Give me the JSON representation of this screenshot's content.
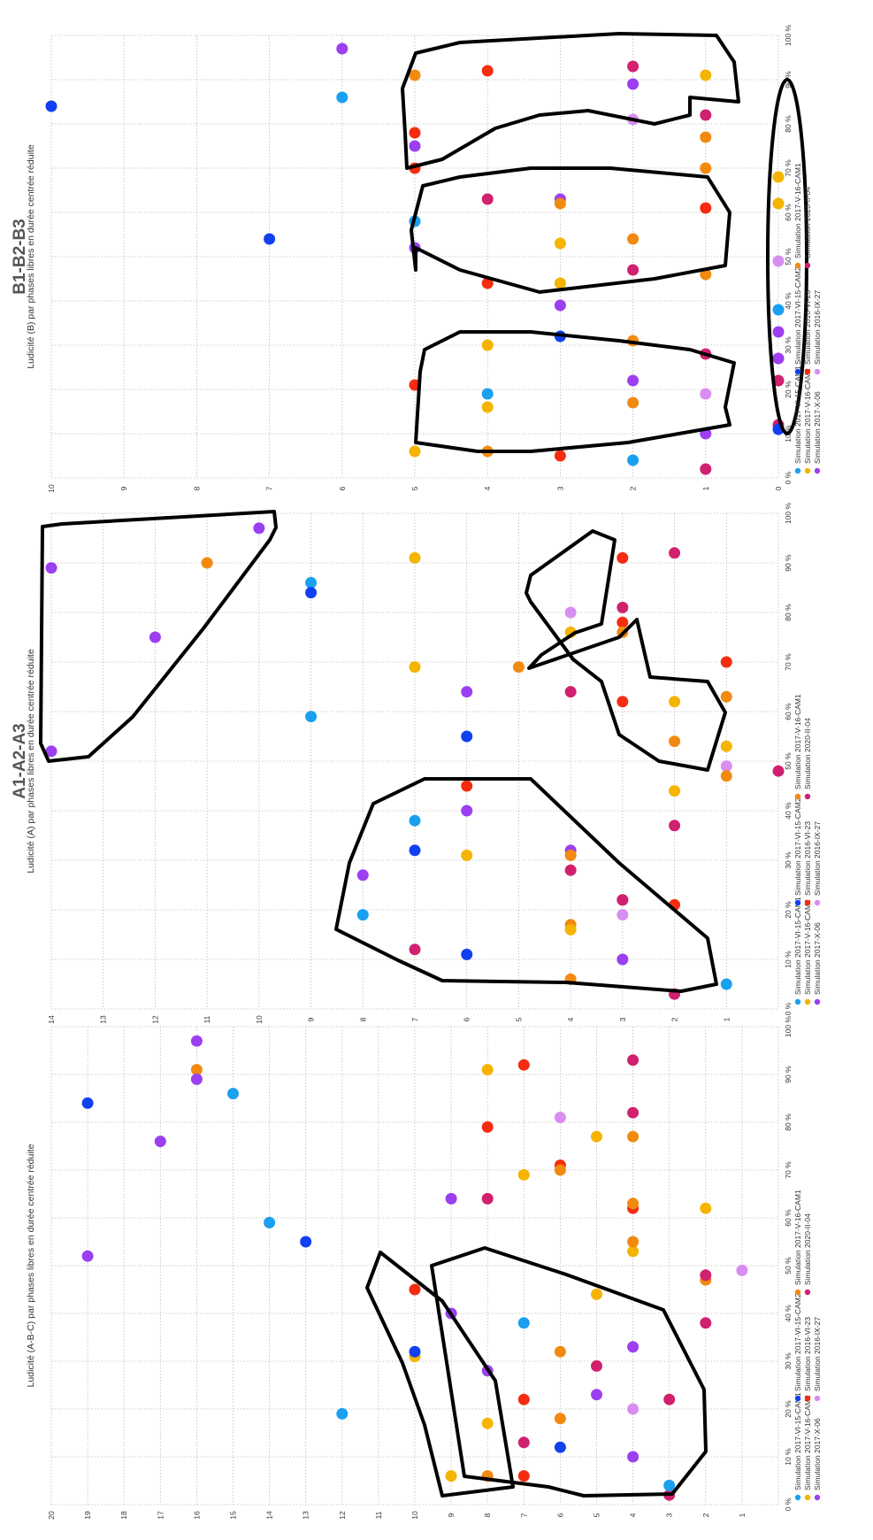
{
  "colors": {
    "Simulation 2017-VI-15-CAM1": "#1aa0f0",
    "Simulation 2017-V-16-CAM2": "#f5b400",
    "Simulation 2017-X-06": "#9b3ff0",
    "Simulation 2017-VI-15-CAM2": "#1040f0",
    "Simulation 2016-VI-23": "#f42d10",
    "Simulation 2016-IX-27": "#d88ef0",
    "Simulation 2017-V-16-CAM1": "#f28a10",
    "Simulation 2020-II-04": "#d0206e"
  },
  "legend_entries": [
    "Simulation 2017-VI-15-CAM1",
    "Simulation 2017-V-16-CAM2",
    "Simulation 2017-X-06",
    "Simulation 2017-VI-15-CAM2",
    "Simulation 2016-VI-23",
    "Simulation 2016-IX-27",
    "Simulation 2017-V-16-CAM1",
    "Simulation 2020-II-04"
  ],
  "chart_data": [
    {
      "type": "scatter",
      "title": "",
      "subtitle": "Ludicité (A-B-C) par phases libres en durée centrée réduite",
      "xlabel": "",
      "ylabel": "",
      "xlim": [
        0,
        100
      ],
      "ylim": [
        0,
        20
      ],
      "x_ticks": [
        "0 %",
        "10 %",
        "20 %",
        "30 %",
        "40 %",
        "50 %",
        "60 %",
        "70 %",
        "80 %",
        "90 %",
        "100 %"
      ],
      "y_ticks": [
        "20",
        "19",
        "18",
        "17",
        "16",
        "15",
        "14",
        "13",
        "12",
        "11",
        "10",
        "9",
        "8",
        "7",
        "6",
        "5",
        "4",
        "3",
        "2",
        "1"
      ],
      "points": [
        {
          "s": "Simulation 2017-X-06",
          "x": 52,
          "y": 19
        },
        {
          "s": "Simulation 2017-VI-15-CAM2",
          "x": 84,
          "y": 19
        },
        {
          "s": "Simulation 2017-X-06",
          "x": 76,
          "y": 17
        },
        {
          "s": "Simulation 2017-X-06",
          "x": 97,
          "y": 16
        },
        {
          "s": "Simulation 2017-V-16-CAM1",
          "x": 91,
          "y": 16
        },
        {
          "s": "Simulation 2017-X-06",
          "x": 89,
          "y": 16
        },
        {
          "s": "Simulation 2017-VI-15-CAM1",
          "x": 86,
          "y": 15
        },
        {
          "s": "Simulation 2017-VI-15-CAM1",
          "x": 59,
          "y": 14
        },
        {
          "s": "Simulation 2017-VI-15-CAM2",
          "x": 55,
          "y": 13
        },
        {
          "s": "Simulation 2017-VI-15-CAM1",
          "x": 19,
          "y": 12
        },
        {
          "s": "Simulation 2016-VI-23",
          "x": 45,
          "y": 10
        },
        {
          "s": "Simulation 2017-V-16-CAM2",
          "x": 31,
          "y": 10
        },
        {
          "s": "Simulation 2017-VI-15-CAM2",
          "x": 32,
          "y": 10
        },
        {
          "s": "Simulation 2017-V-16-CAM2",
          "x": 6,
          "y": 9
        },
        {
          "s": "Simulation 2017-X-06",
          "x": 40,
          "y": 9
        },
        {
          "s": "Simulation 2017-X-06",
          "x": 64,
          "y": 9
        },
        {
          "s": "Simulation 2017-V-16-CAM1",
          "x": 6,
          "y": 8
        },
        {
          "s": "Simulation 2017-V-16-CAM2",
          "x": 17,
          "y": 8
        },
        {
          "s": "Simulation 2017-X-06",
          "x": 28,
          "y": 8
        },
        {
          "s": "Simulation 2020-II-04",
          "x": 64,
          "y": 8
        },
        {
          "s": "Simulation 2016-VI-23",
          "x": 79,
          "y": 8
        },
        {
          "s": "Simulation 2017-V-16-CAM2",
          "x": 91,
          "y": 8
        },
        {
          "s": "Simulation 2016-VI-23",
          "x": 6,
          "y": 7
        },
        {
          "s": "Simulation 2020-II-04",
          "x": 13,
          "y": 7
        },
        {
          "s": "Simulation 2016-VI-23",
          "x": 22,
          "y": 7
        },
        {
          "s": "Simulation 2017-VI-15-CAM1",
          "x": 38,
          "y": 7
        },
        {
          "s": "Simulation 2017-V-16-CAM2",
          "x": 69,
          "y": 7
        },
        {
          "s": "Simulation 2016-VI-23",
          "x": 92,
          "y": 7
        },
        {
          "s": "Simulation 2017-VI-15-CAM2",
          "x": 12,
          "y": 6
        },
        {
          "s": "Simulation 2017-V-16-CAM1",
          "x": 18,
          "y": 6
        },
        {
          "s": "Simulation 2017-V-16-CAM1",
          "x": 32,
          "y": 6
        },
        {
          "s": "Simulation 2016-VI-23",
          "x": 71,
          "y": 6
        },
        {
          "s": "Simulation 2017-V-16-CAM1",
          "x": 70,
          "y": 6
        },
        {
          "s": "Simulation 2016-IX-27",
          "x": 81,
          "y": 6
        },
        {
          "s": "Simulation 2017-X-06",
          "x": 23,
          "y": 5
        },
        {
          "s": "Simulation 2020-II-04",
          "x": 29,
          "y": 5
        },
        {
          "s": "Simulation 2017-V-16-CAM2",
          "x": 44,
          "y": 5
        },
        {
          "s": "Simulation 2017-V-16-CAM2",
          "x": 77,
          "y": 5
        },
        {
          "s": "Simulation 2017-X-06",
          "x": 10,
          "y": 4
        },
        {
          "s": "Simulation 2016-IX-27",
          "x": 20,
          "y": 4
        },
        {
          "s": "Simulation 2017-X-06",
          "x": 33,
          "y": 4
        },
        {
          "s": "Simulation 2017-V-16-CAM2",
          "x": 53,
          "y": 4
        },
        {
          "s": "Simulation 2017-V-16-CAM1",
          "x": 55,
          "y": 4
        },
        {
          "s": "Simulation 2016-VI-23",
          "x": 62,
          "y": 4
        },
        {
          "s": "Simulation 2017-V-16-CAM1",
          "x": 63,
          "y": 4
        },
        {
          "s": "Simulation 2017-V-16-CAM1",
          "x": 77,
          "y": 4
        },
        {
          "s": "Simulation 2020-II-04",
          "x": 82,
          "y": 4
        },
        {
          "s": "Simulation 2020-II-04",
          "x": 93,
          "y": 4
        },
        {
          "s": "Simulation 2020-II-04",
          "x": 2,
          "y": 3
        },
        {
          "s": "Simulation 2017-VI-15-CAM1",
          "x": 4,
          "y": 3
        },
        {
          "s": "Simulation 2020-II-04",
          "x": 22,
          "y": 3
        },
        {
          "s": "Simulation 2020-II-04",
          "x": 38,
          "y": 2
        },
        {
          "s": "Simulation 2017-V-16-CAM1",
          "x": 47,
          "y": 2
        },
        {
          "s": "Simulation 2020-II-04",
          "x": 48,
          "y": 2
        },
        {
          "s": "Simulation 2017-V-16-CAM2",
          "x": 62,
          "y": 2
        },
        {
          "s": "Simulation 2016-IX-27",
          "x": 49,
          "y": 1
        }
      ]
    },
    {
      "type": "scatter",
      "title": "A1-A2-A3",
      "subtitle": "Ludicité (A) par phases libres en durée centrée réduite",
      "xlabel": "",
      "ylabel": "",
      "xlim": [
        0,
        100
      ],
      "ylim": [
        0,
        14
      ],
      "x_ticks": [
        "0 %",
        "10 %",
        "20 %",
        "30 %",
        "40 %",
        "50 %",
        "60 %",
        "70 %",
        "80 %",
        "90 %",
        "100 %"
      ],
      "y_ticks": [
        "14",
        "13",
        "12",
        "11",
        "10",
        "9",
        "8",
        "7",
        "6",
        "5",
        "4",
        "3",
        "2",
        "1"
      ],
      "points": [
        {
          "s": "Simulation 2017-X-06",
          "x": 89,
          "y": 14
        },
        {
          "s": "Simulation 2017-X-06",
          "x": 52,
          "y": 14
        },
        {
          "s": "Simulation 2017-X-06",
          "x": 75,
          "y": 12
        },
        {
          "s": "Simulation 2017-V-16-CAM1",
          "x": 90,
          "y": 11
        },
        {
          "s": "Simulation 2017-X-06",
          "x": 97,
          "y": 10
        },
        {
          "s": "Simulation 2017-VI-15-CAM1",
          "x": 86,
          "y": 9
        },
        {
          "s": "Simulation 2017-VI-15-CAM2",
          "x": 84,
          "y": 9
        },
        {
          "s": "Simulation 2017-VI-15-CAM1",
          "x": 59,
          "y": 9
        },
        {
          "s": "Simulation 2017-VI-15-CAM1",
          "x": 19,
          "y": 8
        },
        {
          "s": "Simulation 2017-X-06",
          "x": 27,
          "y": 8
        },
        {
          "s": "Simulation 2017-V-16-CAM2",
          "x": 91,
          "y": 7
        },
        {
          "s": "Simulation 2017-V-16-CAM2",
          "x": 69,
          "y": 7
        },
        {
          "s": "Simulation 2017-VI-15-CAM1",
          "x": 38,
          "y": 7
        },
        {
          "s": "Simulation 2017-VI-15-CAM2",
          "x": 32,
          "y": 7
        },
        {
          "s": "Simulation 2020-II-04",
          "x": 12,
          "y": 7
        },
        {
          "s": "Simulation 2017-X-06",
          "x": 64,
          "y": 6
        },
        {
          "s": "Simulation 2017-VI-15-CAM2",
          "x": 55,
          "y": 6
        },
        {
          "s": "Simulation 2016-VI-23",
          "x": 45,
          "y": 6
        },
        {
          "s": "Simulation 2017-X-06",
          "x": 40,
          "y": 6
        },
        {
          "s": "Simulation 2017-V-16-CAM2",
          "x": 31,
          "y": 6
        },
        {
          "s": "Simulation 2017-VI-15-CAM2",
          "x": 11,
          "y": 6
        },
        {
          "s": "Simulation 2017-V-16-CAM1",
          "x": 69,
          "y": 5
        },
        {
          "s": "Simulation 2016-IX-27",
          "x": 80,
          "y": 4
        },
        {
          "s": "Simulation 2017-V-16-CAM2",
          "x": 76,
          "y": 4
        },
        {
          "s": "Simulation 2020-II-04",
          "x": 64,
          "y": 4
        },
        {
          "s": "Simulation 2017-X-06",
          "x": 32,
          "y": 4
        },
        {
          "s": "Simulation 2017-V-16-CAM1",
          "x": 31,
          "y": 4
        },
        {
          "s": "Simulation 2020-II-04",
          "x": 28,
          "y": 4
        },
        {
          "s": "Simulation 2017-V-16-CAM1",
          "x": 17,
          "y": 4
        },
        {
          "s": "Simulation 2017-V-16-CAM2",
          "x": 16,
          "y": 4
        },
        {
          "s": "Simulation 2017-V-16-CAM1",
          "x": 6,
          "y": 4
        },
        {
          "s": "Simulation 2016-VI-23",
          "x": 91,
          "y": 3
        },
        {
          "s": "Simulation 2020-II-04",
          "x": 81,
          "y": 3
        },
        {
          "s": "Simulation 2016-VI-23",
          "x": 78,
          "y": 3
        },
        {
          "s": "Simulation 2017-V-16-CAM1",
          "x": 76,
          "y": 3
        },
        {
          "s": "Simulation 2016-VI-23",
          "x": 62,
          "y": 3
        },
        {
          "s": "Simulation 2017-X-06",
          "x": 22,
          "y": 3
        },
        {
          "s": "Simulation 2020-II-04",
          "x": 22,
          "y": 3
        },
        {
          "s": "Simulation 2016-IX-27",
          "x": 19,
          "y": 3
        },
        {
          "s": "Simulation 2017-X-06",
          "x": 10,
          "y": 3
        },
        {
          "s": "Simulation 2020-II-04",
          "x": 92,
          "y": 2
        },
        {
          "s": "Simulation 2017-V-16-CAM2",
          "x": 62,
          "y": 2
        },
        {
          "s": "Simulation 2017-V-16-CAM1",
          "x": 54,
          "y": 2
        },
        {
          "s": "Simulation 2017-V-16-CAM2",
          "x": 44,
          "y": 2
        },
        {
          "s": "Simulation 2020-II-04",
          "x": 37,
          "y": 2
        },
        {
          "s": "Simulation 2016-VI-23",
          "x": 21,
          "y": 2
        },
        {
          "s": "Simulation 2020-II-04",
          "x": 3,
          "y": 2
        },
        {
          "s": "Simulation 2016-VI-23",
          "x": 70,
          "y": 1
        },
        {
          "s": "Simulation 2017-V-16-CAM1",
          "x": 63,
          "y": 1
        },
        {
          "s": "Simulation 2017-V-16-CAM2",
          "x": 53,
          "y": 1
        },
        {
          "s": "Simulation 2016-IX-27",
          "x": 49,
          "y": 1
        },
        {
          "s": "Simulation 2017-V-16-CAM1",
          "x": 47,
          "y": 1
        },
        {
          "s": "Simulation 2017-VI-15-CAM1",
          "x": 5,
          "y": 1
        },
        {
          "s": "Simulation 2020-II-04",
          "x": 48,
          "y": 0
        }
      ]
    },
    {
      "type": "scatter",
      "title": "B1-B2-B3",
      "subtitle": "Ludicité (B) par phases libres en durée centrée réduite",
      "xlabel": "",
      "ylabel": "",
      "xlim": [
        0,
        100
      ],
      "ylim": [
        0,
        10
      ],
      "x_ticks": [
        "0 %",
        "10 %",
        "20 %",
        "30 %",
        "40 %",
        "50 %",
        "60 %",
        "70 %",
        "80 %",
        "90 %",
        "100 %"
      ],
      "y_ticks": [
        "10",
        "9",
        "8",
        "7",
        "6",
        "5",
        "4",
        "3",
        "2",
        "1",
        "0"
      ],
      "points": [
        {
          "s": "Simulation 2017-VI-15-CAM2",
          "x": 84,
          "y": 10
        },
        {
          "s": "Simulation 2017-VI-15-CAM2",
          "x": 54,
          "y": 7
        },
        {
          "s": "Simulation 2017-X-06",
          "x": 97,
          "y": 6
        },
        {
          "s": "Simulation 2017-VI-15-CAM1",
          "x": 86,
          "y": 6
        },
        {
          "s": "Simulation 2017-V-16-CAM1",
          "x": 91,
          "y": 5
        },
        {
          "s": "Simulation 2016-VI-23",
          "x": 78,
          "y": 5
        },
        {
          "s": "Simulation 2017-X-06",
          "x": 75,
          "y": 5
        },
        {
          "s": "Simulation 2016-VI-23",
          "x": 70,
          "y": 5
        },
        {
          "s": "Simulation 2017-VI-15-CAM1",
          "x": 58,
          "y": 5
        },
        {
          "s": "Simulation 2017-X-06",
          "x": 52,
          "y": 5
        },
        {
          "s": "Simulation 2016-VI-23",
          "x": 21,
          "y": 5
        },
        {
          "s": "Simulation 2017-V-16-CAM2",
          "x": 6,
          "y": 5
        },
        {
          "s": "Simulation 2016-VI-23",
          "x": 92,
          "y": 4
        },
        {
          "s": "Simulation 2020-II-04",
          "x": 63,
          "y": 4
        },
        {
          "s": "Simulation 2016-VI-23",
          "x": 44,
          "y": 4
        },
        {
          "s": "Simulation 2017-V-16-CAM2",
          "x": 30,
          "y": 4
        },
        {
          "s": "Simulation 2017-VI-15-CAM1",
          "x": 19,
          "y": 4
        },
        {
          "s": "Simulation 2017-V-16-CAM2",
          "x": 16,
          "y": 4
        },
        {
          "s": "Simulation 2017-V-16-CAM1",
          "x": 6,
          "y": 4
        },
        {
          "s": "Simulation 2017-X-06",
          "x": 63,
          "y": 3
        },
        {
          "s": "Simulation 2017-V-16-CAM1",
          "x": 62,
          "y": 3
        },
        {
          "s": "Simulation 2017-V-16-CAM2",
          "x": 53,
          "y": 3
        },
        {
          "s": "Simulation 2017-V-16-CAM2",
          "x": 44,
          "y": 3
        },
        {
          "s": "Simulation 2017-X-06",
          "x": 39,
          "y": 3
        },
        {
          "s": "Simulation 2017-VI-15-CAM2",
          "x": 32,
          "y": 3
        },
        {
          "s": "Simulation 2016-VI-23",
          "x": 5,
          "y": 3
        },
        {
          "s": "Simulation 2020-II-04",
          "x": 93,
          "y": 2
        },
        {
          "s": "Simulation 2017-X-06",
          "x": 89,
          "y": 2
        },
        {
          "s": "Simulation 2016-IX-27",
          "x": 81,
          "y": 2
        },
        {
          "s": "Simulation 2017-V-16-CAM1",
          "x": 54,
          "y": 2
        },
        {
          "s": "Simulation 2020-II-04",
          "x": 47,
          "y": 2
        },
        {
          "s": "Simulation 2017-V-16-CAM1",
          "x": 31,
          "y": 2
        },
        {
          "s": "Simulation 2017-X-06",
          "x": 22,
          "y": 2
        },
        {
          "s": "Simulation 2017-V-16-CAM1",
          "x": 17,
          "y": 2
        },
        {
          "s": "Simulation 2017-VI-15-CAM1",
          "x": 4,
          "y": 2
        },
        {
          "s": "Simulation 2017-V-16-CAM2",
          "x": 91,
          "y": 1
        },
        {
          "s": "Simulation 2020-II-04",
          "x": 82,
          "y": 1
        },
        {
          "s": "Simulation 2017-V-16-CAM1",
          "x": 77,
          "y": 1
        },
        {
          "s": "Simulation 2017-V-16-CAM1",
          "x": 70,
          "y": 1
        },
        {
          "s": "Simulation 2016-VI-23",
          "x": 61,
          "y": 1
        },
        {
          "s": "Simulation 2017-V-16-CAM1",
          "x": 46,
          "y": 1
        },
        {
          "s": "Simulation 2020-II-04",
          "x": 28,
          "y": 1
        },
        {
          "s": "Simulation 2016-IX-27",
          "x": 19,
          "y": 1
        },
        {
          "s": "Simulation 2017-X-06",
          "x": 10,
          "y": 1
        },
        {
          "s": "Simulation 2020-II-04",
          "x": 2,
          "y": 1
        },
        {
          "s": "Simulation 2017-V-16-CAM2",
          "x": 68,
          "y": 0
        },
        {
          "s": "Simulation 2017-V-16-CAM2",
          "x": 62,
          "y": 0
        },
        {
          "s": "Simulation 2016-IX-27",
          "x": 49,
          "y": 0
        },
        {
          "s": "Simulation 2017-VI-15-CAM1",
          "x": 38,
          "y": 0
        },
        {
          "s": "Simulation 2017-X-06",
          "x": 33,
          "y": 0
        },
        {
          "s": "Simulation 2017-X-06",
          "x": 27,
          "y": 0
        },
        {
          "s": "Simulation 2020-II-04",
          "x": 22,
          "y": 0
        },
        {
          "s": "Simulation 2020-II-04",
          "x": 12,
          "y": 0
        },
        {
          "s": "Simulation 2017-VI-15-CAM2",
          "x": 11,
          "y": 0
        }
      ]
    }
  ]
}
